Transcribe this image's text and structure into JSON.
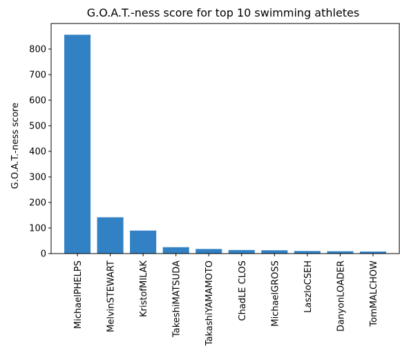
{
  "chart_data": {
    "type": "bar",
    "title": "G.O.A.T.-ness score for top 10 swimming athletes",
    "xlabel": "",
    "ylabel": "G.O.A.T.-ness score",
    "categories": [
      "MichaelPHELPS",
      "MelvinSTEWART",
      "KristofMILAK",
      "TakeshiMATSUDA",
      "TakashiYAMAMOTO",
      "ChadLE CLOS",
      "MichaelGROSS",
      "LaszloCSEH",
      "DanyonLOADER",
      "TomMALCHOW"
    ],
    "values": [
      856,
      142,
      90,
      25,
      18,
      14,
      13,
      10,
      9,
      8
    ],
    "ylim": [
      0,
      900
    ],
    "yticks": [
      0,
      100,
      200,
      300,
      400,
      500,
      600,
      700,
      800
    ],
    "grid": false,
    "legend": "none",
    "bar_color": "#3181c4"
  }
}
